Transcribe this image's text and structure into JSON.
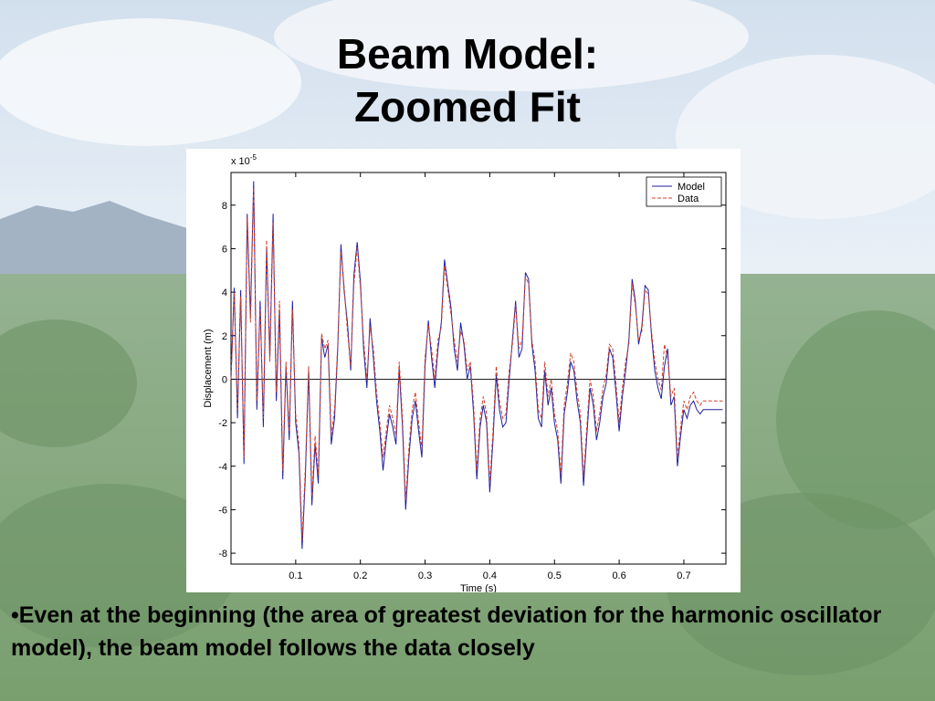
{
  "slide": {
    "title_line1": "Beam Model:",
    "title_line2": "Zoomed Fit",
    "bullet_text": "•Even at the beginning (the area of greatest deviation for the harmonic oscillator model), the beam model follows the data closely"
  },
  "background": {
    "sky_color": "#dfe8f2",
    "mountain_color": "#8fa3b8",
    "forest_color": "#5f8a55"
  },
  "chart_data": {
    "type": "line",
    "xlabel": "Time (s)",
    "ylabel": "Displacement (m)",
    "y_exponent_base": "x 10",
    "y_exponent_power": "-5",
    "xlim": [
      0,
      0.765
    ],
    "ylim": [
      -8.5,
      9.5
    ],
    "x_ticks": [
      0.1,
      0.2,
      0.3,
      0.4,
      0.5,
      0.6,
      0.7
    ],
    "x_tick_labels": [
      "0.1",
      "0.2",
      "0.3",
      "0.4",
      "0.5",
      "0.6",
      "0.7"
    ],
    "y_ticks": [
      -8,
      -6,
      -4,
      -2,
      0,
      2,
      4,
      6,
      8
    ],
    "y_tick_labels": [
      "-8",
      "-6",
      "-4",
      "-2",
      "0",
      "2",
      "4",
      "6",
      "8"
    ],
    "zero_line": true,
    "legend_position": "top-right",
    "series": [
      {
        "name": "Model",
        "color": "#1f1fa0",
        "style": "solid",
        "x": [
          0,
          0.005,
          0.01,
          0.015,
          0.02,
          0.025,
          0.03,
          0.035,
          0.04,
          0.045,
          0.05,
          0.055,
          0.06,
          0.065,
          0.07,
          0.075,
          0.08,
          0.085,
          0.09,
          0.095,
          0.1,
          0.105,
          0.11,
          0.115,
          0.12,
          0.125,
          0.13,
          0.135,
          0.14,
          0.145,
          0.15,
          0.155,
          0.16,
          0.165,
          0.17,
          0.175,
          0.18,
          0.185,
          0.19,
          0.195,
          0.2,
          0.205,
          0.21,
          0.215,
          0.22,
          0.225,
          0.23,
          0.235,
          0.24,
          0.245,
          0.25,
          0.255,
          0.26,
          0.265,
          0.27,
          0.275,
          0.28,
          0.285,
          0.29,
          0.295,
          0.3,
          0.305,
          0.31,
          0.315,
          0.32,
          0.325,
          0.33,
          0.335,
          0.34,
          0.345,
          0.35,
          0.355,
          0.36,
          0.365,
          0.37,
          0.375,
          0.38,
          0.385,
          0.39,
          0.395,
          0.4,
          0.405,
          0.41,
          0.415,
          0.42,
          0.425,
          0.43,
          0.435,
          0.44,
          0.445,
          0.45,
          0.455,
          0.46,
          0.465,
          0.47,
          0.475,
          0.48,
          0.485,
          0.49,
          0.495,
          0.5,
          0.505,
          0.51,
          0.515,
          0.52,
          0.525,
          0.53,
          0.535,
          0.54,
          0.545,
          0.55,
          0.555,
          0.56,
          0.565,
          0.57,
          0.575,
          0.58,
          0.585,
          0.59,
          0.595,
          0.6,
          0.605,
          0.61,
          0.615,
          0.62,
          0.625,
          0.63,
          0.635,
          0.64,
          0.645,
          0.65,
          0.655,
          0.66,
          0.665,
          0.67,
          0.675,
          0.68,
          0.685,
          0.69,
          0.695,
          0.7,
          0.705,
          0.71,
          0.715,
          0.72,
          0.725,
          0.73,
          0.735,
          0.74,
          0.745,
          0.75,
          0.755,
          0.76
        ],
        "y": [
          0,
          4.2,
          -1.8,
          4.1,
          -3.9,
          7.6,
          2.9,
          9.1,
          -1.4,
          3.6,
          -2.2,
          6.0,
          1.0,
          7.6,
          -1.0,
          3.2,
          -4.6,
          0.6,
          -2.8,
          3.6,
          -2.0,
          -3.4,
          -7.8,
          -4.4,
          0.4,
          -5.8,
          -3.0,
          -4.8,
          1.9,
          1.0,
          1.6,
          -3.0,
          -1.8,
          1.4,
          6.2,
          4.0,
          2.6,
          0.4,
          4.8,
          6.3,
          4.5,
          1.4,
          -0.4,
          2.8,
          1.0,
          -1.0,
          -2.4,
          -4.2,
          -2.8,
          -1.6,
          -2.2,
          -3.0,
          0.5,
          -2.2,
          -6.0,
          -3.6,
          -1.8,
          -1.0,
          -2.4,
          -3.6,
          0.6,
          2.7,
          1.0,
          -0.4,
          1.4,
          2.6,
          5.5,
          4.4,
          3.3,
          1.4,
          0.4,
          2.6,
          1.6,
          0.0,
          0.6,
          -1.6,
          -4.6,
          -2.2,
          -1.2,
          -2.0,
          -5.2,
          -2.8,
          0.2,
          -1.4,
          -2.2,
          -2.0,
          0.0,
          1.8,
          3.6,
          1.0,
          1.4,
          4.9,
          4.6,
          1.6,
          0.4,
          -1.8,
          -2.2,
          0.4,
          -1.2,
          -0.4,
          -2.0,
          -2.8,
          -4.8,
          -1.6,
          -0.6,
          0.8,
          0.4,
          -1.0,
          -2.0,
          -4.9,
          -2.6,
          -0.4,
          -1.2,
          -2.8,
          -2.0,
          -0.8,
          -0.2,
          1.4,
          1.0,
          -0.6,
          -2.4,
          -0.8,
          0.4,
          1.8,
          4.6,
          3.6,
          1.6,
          2.4,
          4.3,
          4.1,
          2.0,
          0.4,
          -0.4,
          -0.9,
          0.6,
          1.4,
          -1.2,
          -0.8,
          -4.0,
          -2.6,
          -1.4,
          -1.8,
          -1.2,
          -1.0,
          -1.4,
          -1.6,
          -1.4,
          -1.4,
          -1.4,
          -1.4,
          -1.4,
          -1.4,
          -1.4
        ]
      },
      {
        "name": "Data",
        "color": "#d0402e",
        "style": "dashed",
        "x": [
          0,
          0.005,
          0.01,
          0.015,
          0.02,
          0.025,
          0.03,
          0.035,
          0.04,
          0.045,
          0.05,
          0.055,
          0.06,
          0.065,
          0.07,
          0.075,
          0.08,
          0.085,
          0.09,
          0.095,
          0.1,
          0.105,
          0.11,
          0.115,
          0.12,
          0.125,
          0.13,
          0.135,
          0.14,
          0.145,
          0.15,
          0.155,
          0.16,
          0.165,
          0.17,
          0.175,
          0.18,
          0.185,
          0.19,
          0.195,
          0.2,
          0.205,
          0.21,
          0.215,
          0.22,
          0.225,
          0.23,
          0.235,
          0.24,
          0.245,
          0.25,
          0.255,
          0.26,
          0.265,
          0.27,
          0.275,
          0.28,
          0.285,
          0.29,
          0.295,
          0.3,
          0.305,
          0.31,
          0.315,
          0.32,
          0.325,
          0.33,
          0.335,
          0.34,
          0.345,
          0.35,
          0.355,
          0.36,
          0.365,
          0.37,
          0.375,
          0.38,
          0.385,
          0.39,
          0.395,
          0.4,
          0.405,
          0.41,
          0.415,
          0.42,
          0.425,
          0.43,
          0.435,
          0.44,
          0.445,
          0.45,
          0.455,
          0.46,
          0.465,
          0.47,
          0.475,
          0.48,
          0.485,
          0.49,
          0.495,
          0.5,
          0.505,
          0.51,
          0.515,
          0.52,
          0.525,
          0.53,
          0.535,
          0.54,
          0.545,
          0.55,
          0.555,
          0.56,
          0.565,
          0.57,
          0.575,
          0.58,
          0.585,
          0.59,
          0.595,
          0.6,
          0.605,
          0.61,
          0.615,
          0.62,
          0.625,
          0.63,
          0.635,
          0.64,
          0.645,
          0.65,
          0.655,
          0.66,
          0.665,
          0.67,
          0.675,
          0.68,
          0.685,
          0.69,
          0.695,
          0.7,
          0.705,
          0.71,
          0.715,
          0.72,
          0.725,
          0.73,
          0.735,
          0.74,
          0.745,
          0.75,
          0.755,
          0.76
        ],
        "y": [
          0,
          4.0,
          -1.4,
          3.8,
          -3.6,
          7.4,
          2.6,
          8.8,
          -1.0,
          3.2,
          -1.8,
          6.4,
          0.8,
          7.2,
          -0.6,
          3.6,
          -4.2,
          0.8,
          -2.4,
          3.2,
          -1.6,
          -3.0,
          -7.4,
          -4.0,
          0.6,
          -5.4,
          -2.6,
          -4.4,
          2.1,
          1.4,
          1.8,
          -2.6,
          -1.4,
          1.6,
          5.9,
          4.2,
          2.2,
          0.6,
          4.4,
          6.1,
          4.2,
          1.8,
          0.0,
          2.4,
          1.4,
          -0.6,
          -2.0,
          -3.6,
          -2.4,
          -1.2,
          -1.8,
          -2.6,
          0.8,
          -1.8,
          -5.6,
          -3.2,
          -1.4,
          -0.6,
          -2.0,
          -3.2,
          1.0,
          2.5,
          1.4,
          0.0,
          1.8,
          2.4,
          5.2,
          4.2,
          3.0,
          1.8,
          0.8,
          2.2,
          1.8,
          0.4,
          0.8,
          -1.2,
          -4.2,
          -1.8,
          -0.8,
          -1.6,
          -4.8,
          -2.4,
          0.6,
          -1.0,
          -1.8,
          -1.6,
          0.4,
          1.6,
          3.4,
          1.4,
          1.8,
          4.7,
          4.4,
          1.8,
          0.8,
          -1.4,
          -1.8,
          0.8,
          -0.8,
          0.0,
          -1.6,
          -2.4,
          -4.4,
          -1.2,
          -0.2,
          1.2,
          0.8,
          -0.6,
          -1.6,
          -4.5,
          -2.2,
          0.0,
          -0.8,
          -2.4,
          -1.6,
          -0.4,
          0.2,
          1.6,
          1.4,
          -0.2,
          -2.0,
          -0.4,
          0.8,
          1.6,
          4.4,
          3.4,
          1.8,
          2.2,
          4.1,
          3.9,
          2.2,
          0.8,
          0.0,
          -0.5,
          1.6,
          1.0,
          -0.8,
          -0.4,
          -3.6,
          -2.2,
          -1.0,
          -1.4,
          -0.8,
          -0.6,
          -1.0,
          -1.2,
          -1.0,
          -1.0,
          -1.0,
          -1.0,
          -1.0,
          -1.0,
          -1.0
        ]
      }
    ]
  }
}
